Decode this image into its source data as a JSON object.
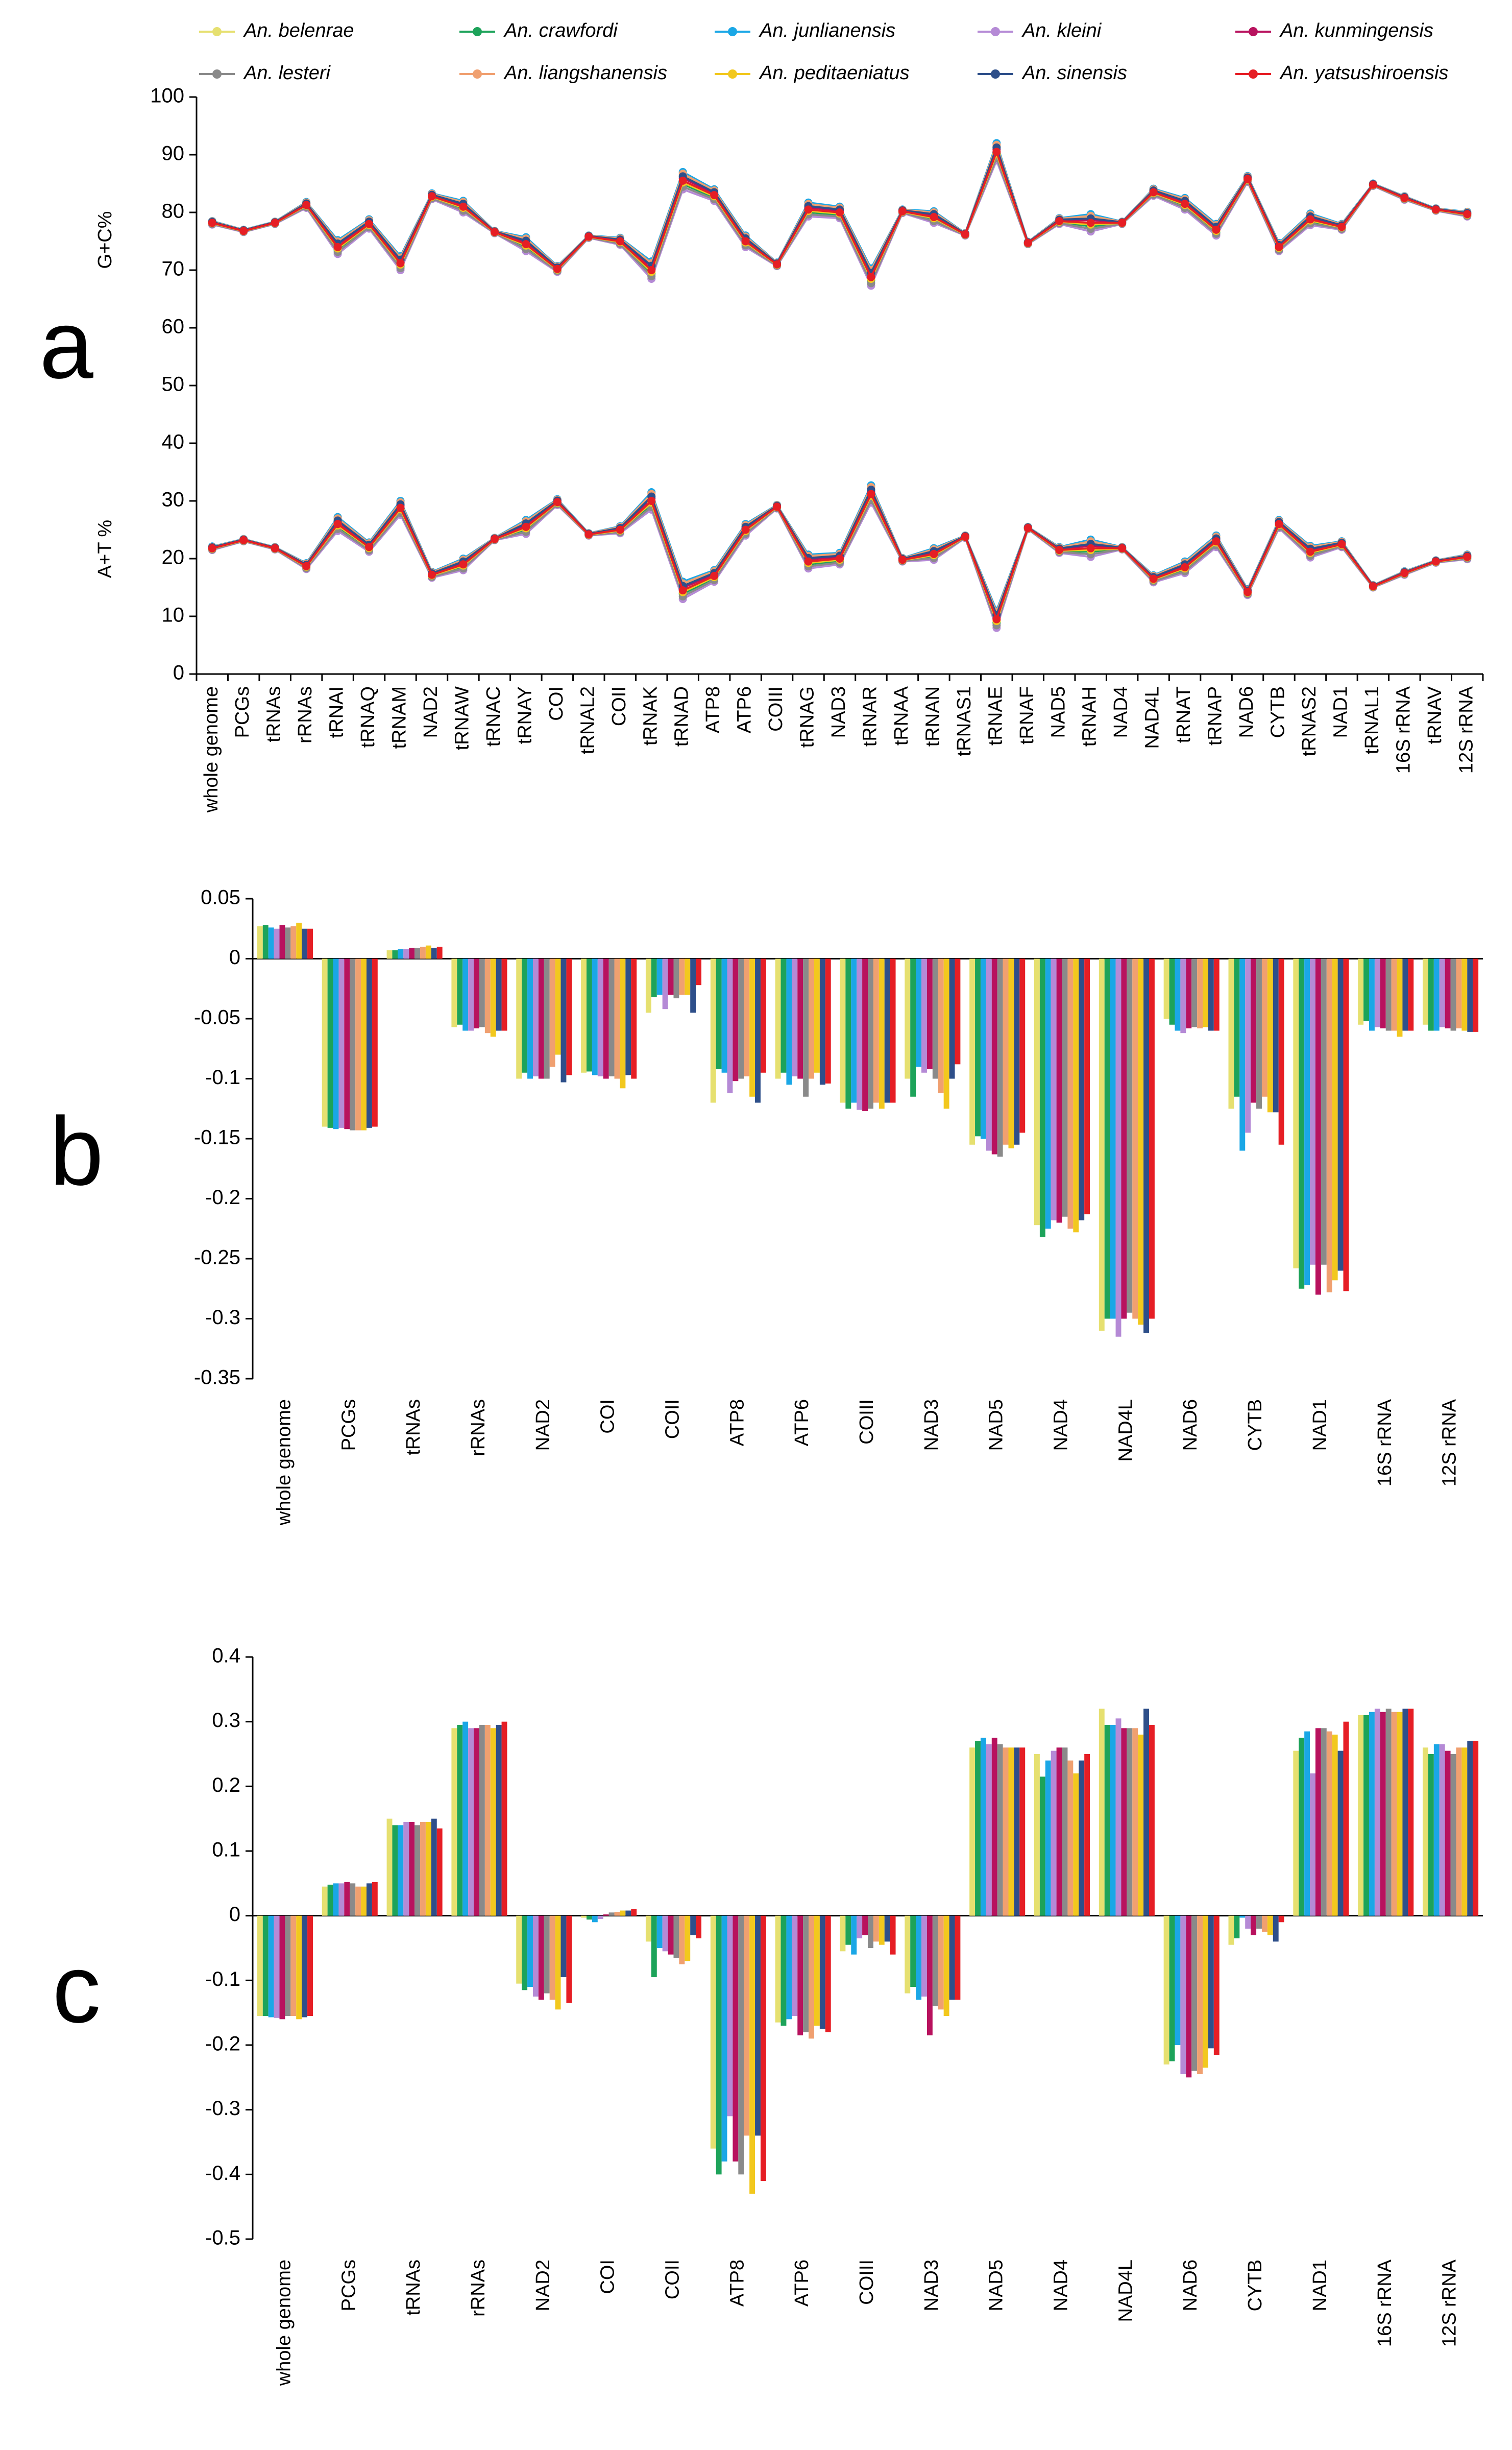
{
  "legend": [
    {
      "name": "An. belenrae",
      "color": "#E6E070"
    },
    {
      "name": "An. crawfordi",
      "color": "#1DA35A"
    },
    {
      "name": "An. junlianensis",
      "color": "#1AA7E6"
    },
    {
      "name": "An. kleini",
      "color": "#B58AD6"
    },
    {
      "name": "An. kunmingensis",
      "color": "#B8125E"
    },
    {
      "name": "An. lesteri",
      "color": "#8A8A8A"
    },
    {
      "name": "An. liangshanensis",
      "color": "#F0A070"
    },
    {
      "name": "An. peditaeniatus",
      "color": "#F2C81E"
    },
    {
      "name": "An. sinensis",
      "color": "#2E4F8A"
    },
    {
      "name": "An. yatsushiroensis",
      "color": "#E61E25"
    }
  ],
  "chart_data": [
    {
      "panel": "a",
      "type": "line",
      "ylabel_top": "G+C%",
      "ylabel_bottom": "A+T %",
      "ylim": [
        0,
        100
      ],
      "yticks": [
        "0",
        "10",
        "20",
        "30",
        "40",
        "50",
        "60",
        "70",
        "80",
        "90",
        "100"
      ],
      "categories": [
        "whole genome",
        "PCGs",
        "tRNAs",
        "rRNAs",
        "tRNAI",
        "tRNAQ",
        "tRNAM",
        "NAD2",
        "tRNAW",
        "tRNAC",
        "tRNAY",
        "COI",
        "tRNAL2",
        "COII",
        "tRNAK",
        "tRNAD",
        "ATP8",
        "ATP6",
        "COIII",
        "tRNAG",
        "NAD3",
        "tRNAR",
        "tRNAA",
        "tRNAN",
        "tRNAS1",
        "tRNAE",
        "tRNAF",
        "NAD5",
        "tRNAH",
        "NAD4",
        "NAD4L",
        "tRNAT",
        "tRNAP",
        "NAD6",
        "CYTB",
        "tRNAS2",
        "NAD1",
        "tRNAL1",
        "16S rRNA",
        "tRNAV",
        "12S rRNA"
      ],
      "gc_base": [
        78.2,
        76.8,
        78.2,
        81.3,
        74,
        78,
        71.2,
        82.8,
        81,
        76.6,
        74.5,
        70.2,
        75.8,
        75,
        70,
        85.5,
        83,
        75,
        71,
        80.5,
        80,
        68.8,
        80.2,
        79.2,
        76.2,
        90.5,
        74.7,
        78.5,
        78.2,
        78.2,
        83.5,
        81.5,
        77,
        85.8,
        74,
        78.8,
        77.5,
        84.8,
        82.5,
        80.5,
        79.7
      ],
      "gc_spread": [
        0.3,
        0.2,
        0.2,
        0.5,
        1.2,
        0.8,
        1.2,
        0.5,
        1,
        0.2,
        1.2,
        0.5,
        0.2,
        0.6,
        1.5,
        1.5,
        1,
        1,
        0.3,
        1.2,
        1,
        1.5,
        0.3,
        1,
        0.2,
        1.5,
        0.2,
        0.5,
        1.5,
        0.2,
        0.6,
        1,
        1,
        0.5,
        0.7,
        1,
        0.5,
        0.2,
        0.3,
        0.2,
        0.4
      ],
      "at_base": [
        21.8,
        23.2,
        21.8,
        18.7,
        26,
        22,
        28.8,
        17.2,
        19,
        23.4,
        25.5,
        29.8,
        24.2,
        25,
        30,
        14.5,
        17,
        25,
        29,
        19.5,
        20,
        31.2,
        19.8,
        20.8,
        23.8,
        9.5,
        25.3,
        21.5,
        21.8,
        21.8,
        16.5,
        18.5,
        23,
        14.2,
        26,
        21.2,
        22.5,
        15.2,
        17.5,
        19.5,
        20.3
      ],
      "at_spread": [
        0.3,
        0.2,
        0.2,
        0.5,
        1.2,
        0.8,
        1.2,
        0.5,
        1,
        0.2,
        1.2,
        0.5,
        0.2,
        0.6,
        1.5,
        1.5,
        1,
        1,
        0.3,
        1.2,
        1,
        1.5,
        0.3,
        1,
        0.2,
        1.5,
        0.2,
        0.5,
        1.5,
        0.2,
        0.6,
        1,
        1,
        0.5,
        0.7,
        1,
        0.5,
        0.2,
        0.3,
        0.2,
        0.4
      ]
    },
    {
      "panel": "b",
      "type": "bar",
      "ylim": [
        -0.35,
        0.05
      ],
      "yticks": [
        "0.05",
        "0",
        "-0.05",
        "-0.1",
        "-0.15",
        "-0.2",
        "-0.25",
        "-0.3",
        "-0.35"
      ],
      "categories": [
        "whole genome",
        "PCGs",
        "tRNAs",
        "rRNAs",
        "NAD2",
        "COI",
        "COII",
        "ATP8",
        "ATP6",
        "COIII",
        "NAD3",
        "NAD5",
        "NAD4",
        "NAD4L",
        "NAD6",
        "CYTB",
        "NAD1",
        "16S rRNA",
        "12S rRNA"
      ],
      "series_values": [
        [
          0.027,
          -0.14,
          0.007,
          -0.057,
          -0.1,
          -0.095,
          -0.045,
          -0.12,
          -0.1,
          -0.12,
          -0.1,
          -0.155,
          -0.222,
          -0.31,
          -0.05,
          -0.125,
          -0.258,
          -0.055,
          -0.055
        ],
        [
          0.028,
          -0.141,
          0.007,
          -0.055,
          -0.095,
          -0.094,
          -0.032,
          -0.092,
          -0.095,
          -0.125,
          -0.115,
          -0.148,
          -0.232,
          -0.3,
          -0.055,
          -0.115,
          -0.275,
          -0.052,
          -0.06
        ],
        [
          0.026,
          -0.142,
          0.008,
          -0.06,
          -0.1,
          -0.097,
          -0.03,
          -0.095,
          -0.105,
          -0.12,
          -0.09,
          -0.15,
          -0.225,
          -0.3,
          -0.06,
          -0.16,
          -0.272,
          -0.06,
          -0.06
        ],
        [
          0.025,
          -0.141,
          0.008,
          -0.06,
          -0.098,
          -0.098,
          -0.042,
          -0.112,
          -0.098,
          -0.126,
          -0.095,
          -0.16,
          -0.218,
          -0.315,
          -0.062,
          -0.145,
          -0.255,
          -0.057,
          -0.057
        ],
        [
          0.028,
          -0.142,
          0.009,
          -0.058,
          -0.1,
          -0.1,
          -0.03,
          -0.102,
          -0.1,
          -0.127,
          -0.092,
          -0.163,
          -0.22,
          -0.3,
          -0.058,
          -0.12,
          -0.28,
          -0.058,
          -0.058
        ],
        [
          0.026,
          -0.143,
          0.009,
          -0.057,
          -0.1,
          -0.098,
          -0.033,
          -0.1,
          -0.115,
          -0.125,
          -0.1,
          -0.165,
          -0.215,
          -0.295,
          -0.057,
          -0.125,
          -0.255,
          -0.06,
          -0.06
        ],
        [
          0.027,
          -0.143,
          0.01,
          -0.062,
          -0.09,
          -0.1,
          -0.03,
          -0.098,
          -0.1,
          -0.12,
          -0.112,
          -0.155,
          -0.225,
          -0.3,
          -0.058,
          -0.115,
          -0.278,
          -0.06,
          -0.058
        ],
        [
          0.03,
          -0.143,
          0.011,
          -0.065,
          -0.08,
          -0.108,
          -0.03,
          -0.115,
          -0.095,
          -0.125,
          -0.125,
          -0.158,
          -0.228,
          -0.305,
          -0.057,
          -0.128,
          -0.268,
          -0.065,
          -0.06
        ],
        [
          0.025,
          -0.141,
          0.009,
          -0.06,
          -0.103,
          -0.097,
          -0.045,
          -0.12,
          -0.105,
          -0.12,
          -0.1,
          -0.155,
          -0.218,
          -0.312,
          -0.06,
          -0.128,
          -0.26,
          -0.06,
          -0.061
        ],
        [
          0.025,
          -0.14,
          0.01,
          -0.06,
          -0.097,
          -0.1,
          -0.022,
          -0.095,
          -0.104,
          -0.12,
          -0.088,
          -0.145,
          -0.213,
          -0.3,
          -0.06,
          -0.155,
          -0.277,
          -0.06,
          -0.061
        ]
      ]
    },
    {
      "panel": "c",
      "type": "bar",
      "ylim": [
        -0.5,
        0.4
      ],
      "yticks": [
        "0.4",
        "0.3",
        "0.2",
        "0.1",
        "0",
        "-0.1",
        "-0.2",
        "-0.3",
        "-0.4",
        "-0.5"
      ],
      "categories": [
        "whole genome",
        "PCGs",
        "tRNAs",
        "rRNAs",
        "NAD2",
        "COI",
        "COII",
        "ATP8",
        "ATP6",
        "COIII",
        "NAD3",
        "NAD5",
        "NAD4",
        "NAD4L",
        "NAD6",
        "CYTB",
        "NAD1",
        "16S rRNA",
        "12S rRNA"
      ],
      "series_values": [
        [
          -0.155,
          0.045,
          0.15,
          0.29,
          -0.105,
          -0.003,
          -0.04,
          -0.36,
          -0.165,
          -0.055,
          -0.12,
          0.26,
          0.25,
          0.32,
          -0.23,
          -0.045,
          0.255,
          0.31,
          0.26
        ],
        [
          -0.155,
          0.048,
          0.14,
          0.295,
          -0.115,
          -0.006,
          -0.095,
          -0.4,
          -0.17,
          -0.045,
          -0.11,
          0.27,
          0.215,
          0.295,
          -0.225,
          -0.035,
          0.275,
          0.31,
          0.25
        ],
        [
          -0.157,
          0.05,
          0.14,
          0.3,
          -0.11,
          -0.01,
          -0.05,
          -0.38,
          -0.16,
          -0.06,
          -0.13,
          0.275,
          0.24,
          0.295,
          -0.2,
          -0.003,
          0.285,
          0.315,
          0.265
        ],
        [
          -0.158,
          0.05,
          0.145,
          0.29,
          -0.125,
          -0.005,
          -0.055,
          -0.31,
          -0.155,
          -0.035,
          -0.125,
          0.265,
          0.255,
          0.305,
          -0.245,
          -0.02,
          0.22,
          0.32,
          0.265
        ],
        [
          -0.16,
          0.052,
          0.145,
          0.29,
          -0.13,
          0.002,
          -0.06,
          -0.38,
          -0.185,
          -0.03,
          -0.185,
          0.275,
          0.26,
          0.29,
          -0.25,
          -0.03,
          0.29,
          0.315,
          0.255
        ],
        [
          -0.155,
          0.05,
          0.14,
          0.295,
          -0.12,
          0.005,
          -0.065,
          -0.4,
          -0.18,
          -0.05,
          -0.14,
          0.265,
          0.26,
          0.29,
          -0.24,
          -0.02,
          0.29,
          0.32,
          0.25
        ],
        [
          -0.155,
          0.045,
          0.145,
          0.295,
          -0.13,
          0.006,
          -0.075,
          -0.34,
          -0.19,
          -0.04,
          -0.145,
          0.26,
          0.24,
          0.29,
          -0.245,
          -0.025,
          0.285,
          0.315,
          0.26
        ],
        [
          -0.16,
          0.045,
          0.145,
          0.29,
          -0.145,
          0.008,
          -0.07,
          -0.43,
          -0.17,
          -0.045,
          -0.155,
          0.26,
          0.22,
          0.28,
          -0.235,
          -0.03,
          0.28,
          0.315,
          0.26
        ],
        [
          -0.157,
          0.05,
          0.15,
          0.295,
          -0.095,
          0.008,
          -0.03,
          -0.34,
          -0.175,
          -0.04,
          -0.13,
          0.26,
          0.24,
          0.32,
          -0.205,
          -0.04,
          0.255,
          0.32,
          0.27
        ],
        [
          -0.155,
          0.052,
          0.135,
          0.3,
          -0.135,
          0.01,
          -0.035,
          -0.41,
          -0.18,
          -0.06,
          -0.13,
          0.26,
          0.25,
          0.295,
          -0.215,
          -0.01,
          0.3,
          0.32,
          0.27
        ]
      ]
    }
  ]
}
